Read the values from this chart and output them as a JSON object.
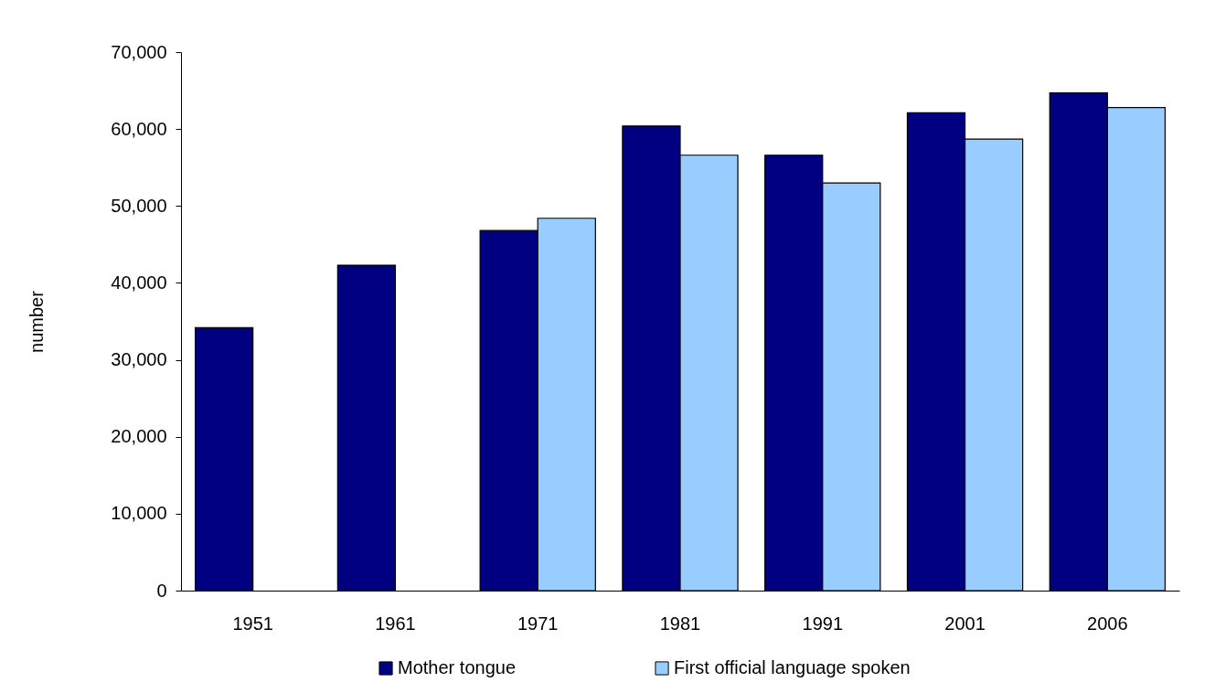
{
  "chart_data": {
    "type": "bar",
    "ylabel": "number",
    "categories": [
      "1951",
      "1961",
      "1971",
      "1981",
      "1991",
      "2001",
      "2006"
    ],
    "series": [
      {
        "name": "Mother tongue",
        "color": "#000080",
        "values": [
          34200,
          42300,
          46800,
          60400,
          56600,
          62100,
          64700
        ]
      },
      {
        "name": "First official language spoken",
        "color": "#99ccff",
        "values": [
          null,
          null,
          48400,
          56600,
          53000,
          58700,
          62800
        ]
      }
    ],
    "ylim": [
      0,
      70000
    ],
    "yticks": [
      0,
      {
        "value": 10000,
        "label": "10,000"
      },
      {
        "value": 20000,
        "label": "20,000"
      },
      {
        "value": 30000,
        "label": "30,000"
      },
      {
        "value": 40000,
        "label": "40,000"
      },
      {
        "value": 50000,
        "label": "50,000"
      },
      {
        "value": 60000,
        "label": "60,000"
      },
      {
        "value": 70000,
        "label": "70,000"
      }
    ],
    "grid": false,
    "legend": "bottom"
  }
}
